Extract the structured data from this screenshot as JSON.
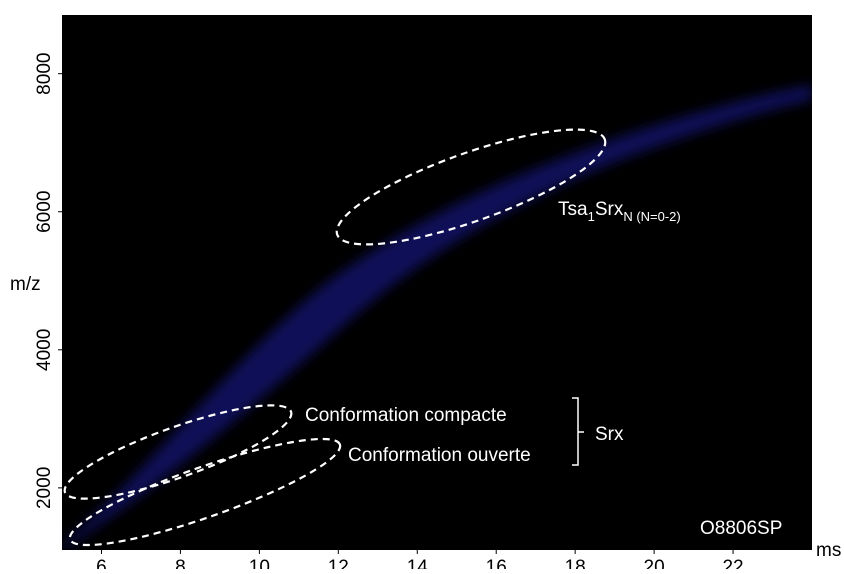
{
  "chart_data": {
    "type": "heatmap",
    "x_label": "ms",
    "y_label": "m/z",
    "xlim": [
      5,
      24
    ],
    "xticks": [
      6,
      8,
      10,
      12,
      14,
      16,
      18,
      20,
      22
    ],
    "ylim": [
      1100,
      8850
    ],
    "yticks": [
      2000,
      4000,
      6000,
      8000
    ],
    "annotations": {
      "tsa": {
        "main": "Tsa",
        "sub1": "1",
        "mid": "Srx",
        "sub2": "N (N=0-2)"
      },
      "compacte": "Conformation compacte",
      "ouverte": "Conformation ouverte",
      "srx": "Srx",
      "sample": "O8806SP"
    }
  }
}
